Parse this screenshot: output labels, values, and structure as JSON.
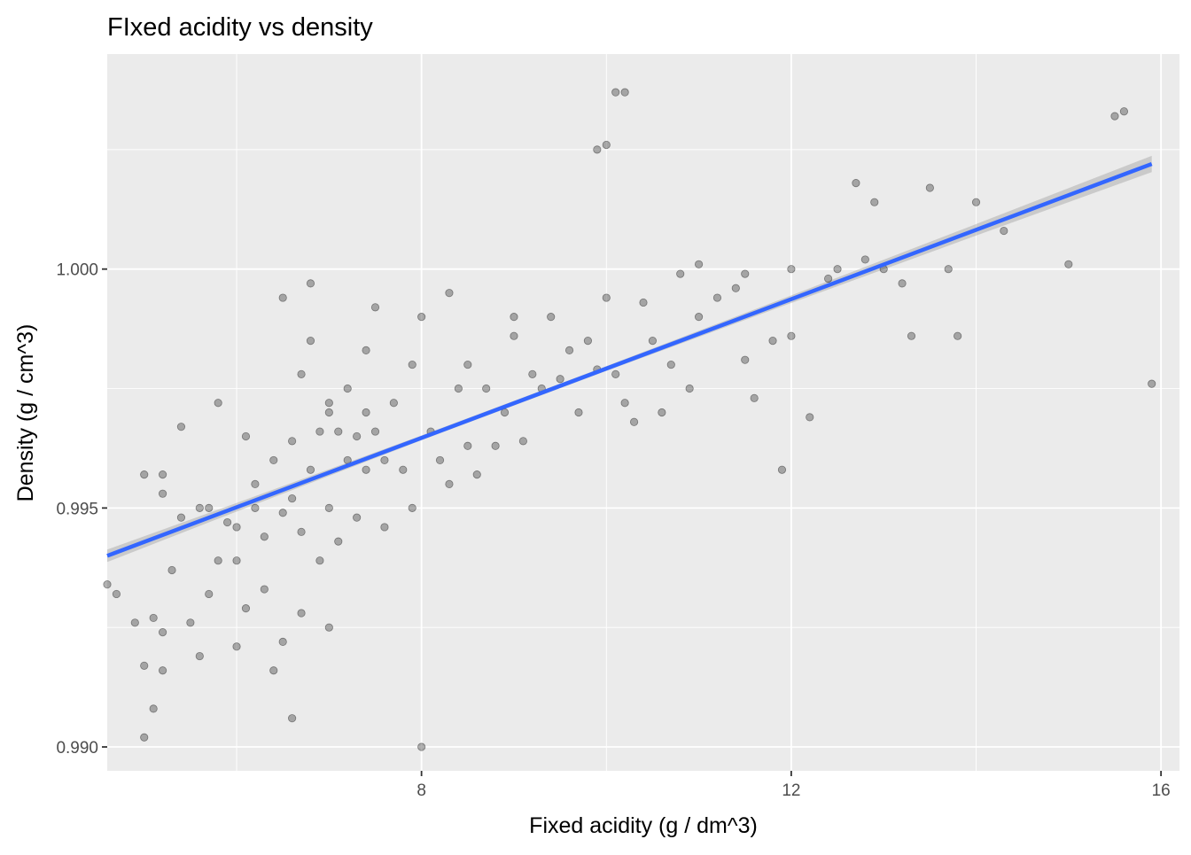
{
  "chart_data": {
    "type": "scatter",
    "title": "FIxed acidity vs density",
    "xlabel": "Fixed acidity (g / dm^3)",
    "ylabel": "Density (g / cm^3)",
    "xlim": [
      4.6,
      16.2
    ],
    "ylim": [
      0.9895,
      1.0045
    ],
    "xticks": [
      8,
      12,
      16
    ],
    "yticks": [
      0.99,
      0.995,
      1.0
    ],
    "ytick_labels": [
      "0.990",
      "0.995",
      "1.000"
    ],
    "grid": true,
    "point_color": "#000000",
    "point_opacity": 0.3,
    "trend_color": "#3366FF",
    "band_color": "#999999",
    "trend_line": {
      "x": [
        4.6,
        15.9
      ],
      "y": [
        0.994,
        1.0022
      ],
      "band_x": [
        4.6,
        6.0,
        8.0,
        10.0,
        12.0,
        14.0,
        15.9
      ],
      "band_half_width": [
        0.00013,
        9e-05,
        5e-05,
        5e-05,
        8e-05,
        0.00012,
        0.00017
      ]
    },
    "series": [
      {
        "x": [
          4.6,
          4.7,
          4.9,
          5.0,
          5.0,
          5.1,
          5.1,
          5.2,
          5.2,
          5.2,
          5.3,
          5.4,
          5.5,
          5.6,
          5.6,
          5.7,
          5.7,
          5.8,
          5.8,
          5.9,
          6.0,
          6.0,
          6.0,
          6.1,
          6.1,
          6.2,
          6.3,
          6.3,
          6.4,
          6.4,
          6.5,
          6.5,
          6.6,
          6.6,
          6.7,
          6.7,
          6.7,
          6.8,
          6.8,
          6.9,
          6.9,
          7.0,
          7.0,
          7.0,
          7.1,
          7.1,
          7.2,
          7.2,
          7.3,
          7.3,
          7.4,
          7.4,
          7.5,
          7.5,
          7.6,
          7.6,
          7.7,
          7.8,
          7.9,
          8.0,
          8.1,
          8.2,
          8.3,
          8.4,
          8.5,
          8.6,
          8.7,
          8.8,
          8.9,
          9.0,
          9.1,
          9.2,
          9.3,
          9.4,
          9.5,
          9.6,
          9.7,
          9.8,
          9.9,
          10.0,
          10.1,
          10.2,
          10.3,
          10.4,
          10.5,
          10.6,
          10.7,
          10.8,
          10.9,
          11.0,
          11.2,
          11.4,
          11.5,
          11.6,
          11.8,
          11.9,
          12.0,
          12.2,
          12.4,
          12.5,
          12.7,
          12.8,
          12.9,
          13.0,
          13.2,
          13.3,
          13.5,
          13.7,
          13.8,
          14.0,
          14.3,
          15.0,
          15.5,
          15.6,
          15.9,
          10.1,
          10.2,
          9.9,
          10.0,
          8.0,
          6.8,
          6.5,
          5.0,
          5.4,
          5.2,
          7.0,
          7.9,
          8.5,
          9.0,
          11.0,
          11.5,
          12.0,
          6.2,
          6.6,
          7.4,
          8.3
        ],
        "y": [
          0.9934,
          0.9932,
          0.9926,
          0.9917,
          0.9902,
          0.9908,
          0.9927,
          0.9916,
          0.9924,
          0.9957,
          0.9937,
          0.9948,
          0.9926,
          0.995,
          0.9919,
          0.995,
          0.9932,
          0.9939,
          0.9972,
          0.9947,
          0.9946,
          0.9921,
          0.9939,
          0.9929,
          0.9965,
          0.9955,
          0.9944,
          0.9933,
          0.996,
          0.9916,
          0.9922,
          0.9949,
          0.9952,
          0.9906,
          0.9945,
          0.9978,
          0.9928,
          0.9958,
          0.9985,
          0.9966,
          0.9939,
          0.997,
          0.995,
          0.9925,
          0.9966,
          0.9943,
          0.996,
          0.9975,
          0.9965,
          0.9948,
          0.997,
          0.9958,
          0.9966,
          0.9992,
          0.996,
          0.9946,
          0.9972,
          0.9958,
          0.995,
          0.99,
          0.9966,
          0.996,
          0.9955,
          0.9975,
          0.9963,
          0.9957,
          0.9975,
          0.9963,
          0.997,
          0.9986,
          0.9964,
          0.9978,
          0.9975,
          0.999,
          0.9977,
          0.9983,
          0.997,
          0.9985,
          0.9979,
          0.9994,
          0.9978,
          0.9972,
          0.9968,
          0.9993,
          0.9985,
          0.997,
          0.998,
          0.9999,
          0.9975,
          0.999,
          0.9994,
          0.9996,
          0.9981,
          0.9973,
          0.9985,
          0.9958,
          1.0,
          0.9969,
          0.9998,
          1.0,
          1.0018,
          1.0002,
          1.0014,
          1.0,
          0.9997,
          0.9986,
          1.0017,
          1.0,
          0.9986,
          1.0014,
          1.0008,
          1.0001,
          1.0032,
          1.0033,
          0.9976,
          1.0037,
          1.0037,
          1.0025,
          1.0026,
          0.999,
          0.9997,
          0.9994,
          0.9957,
          0.9967,
          0.9953,
          0.9972,
          0.998,
          0.998,
          0.999,
          1.0001,
          0.9999,
          0.9986,
          0.995,
          0.9964,
          0.9983,
          0.9995
        ]
      }
    ]
  }
}
